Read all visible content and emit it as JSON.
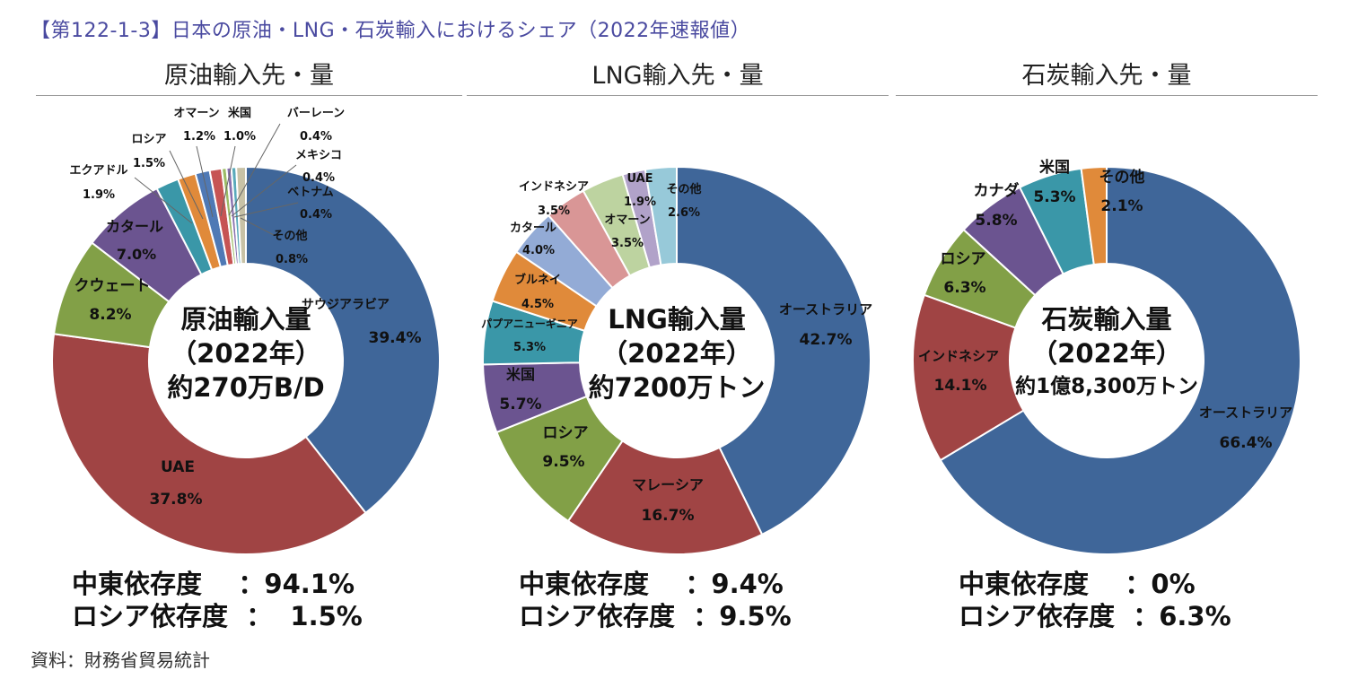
{
  "page_title": "【第122-1-3】日本の原油・LNG・石炭輸入におけるシェア（2022年速報値）",
  "source": "資料：財務省貿易統計",
  "chart_data": [
    {
      "type": "pie",
      "title": "原油輸入先・量",
      "center": [
        "原油輸入量",
        "（2022年）",
        "約270万B/D"
      ],
      "slices": [
        {
          "name": "サウジアラビア",
          "value": 39.4,
          "label": "39.4%",
          "color": "#3f6699"
        },
        {
          "name": "UAE",
          "value": 37.8,
          "label": "37.8%",
          "color": "#a04444"
        },
        {
          "name": "クウェート",
          "value": 8.2,
          "label": "8.2%",
          "color": "#82a047"
        },
        {
          "name": "カタール",
          "value": 7.0,
          "label": "7.0%",
          "color": "#6b5490"
        },
        {
          "name": "エクアドル",
          "value": 1.9,
          "label": "1.9%",
          "color": "#3a97a8"
        },
        {
          "name": "ロシア",
          "value": 1.5,
          "label": "1.5%",
          "color": "#e08a3a"
        },
        {
          "name": "オマーン",
          "value": 1.2,
          "label": "1.2%",
          "color": "#4f79b5"
        },
        {
          "name": "米国",
          "value": 1.0,
          "label": "1.0%",
          "color": "#c65454"
        },
        {
          "name": "バーレーン",
          "value": 0.4,
          "label": "0.4%",
          "color": "#9cbb66"
        },
        {
          "name": "メキシコ",
          "value": 0.4,
          "label": "0.4%",
          "color": "#8870ae"
        },
        {
          "name": "ベトナム",
          "value": 0.4,
          "label": "0.4%",
          "color": "#5aaabb"
        },
        {
          "name": "その他",
          "value": 0.8,
          "label": "0.8%",
          "color": "#c8c2a6"
        }
      ],
      "stats": {
        "mideast_label": "中東依存度",
        "mideast_value": "：94.1%",
        "russia_label": "ロシア依存度",
        "russia_value": "：  1.5%"
      }
    },
    {
      "type": "pie",
      "title": "LNG輸入先・量",
      "center": [
        "LNG輸入量",
        "（2022年）",
        "約7200万トン"
      ],
      "slices": [
        {
          "name": "オーストラリア",
          "value": 42.7,
          "label": "42.7%",
          "color": "#3f6699"
        },
        {
          "name": "マレーシア",
          "value": 16.7,
          "label": "16.7%",
          "color": "#a04444"
        },
        {
          "name": "ロシア",
          "value": 9.5,
          "label": "9.5%",
          "color": "#82a047"
        },
        {
          "name": "米国",
          "value": 5.7,
          "label": "5.7%",
          "color": "#6b5490"
        },
        {
          "name": "パプアニューギニア",
          "value": 5.3,
          "label": "5.3%",
          "color": "#3a97a8"
        },
        {
          "name": "ブルネイ",
          "value": 4.5,
          "label": "4.5%",
          "color": "#e08a3a"
        },
        {
          "name": "カタール",
          "value": 4.0,
          "label": "4.0%",
          "color": "#93abd6"
        },
        {
          "name": "インドネシア",
          "value": 3.5,
          "label": "3.5%",
          "color": "#d99696"
        },
        {
          "name": "オマーン",
          "value": 3.5,
          "label": "3.5%",
          "color": "#bdd3a0"
        },
        {
          "name": "UAE",
          "value": 1.9,
          "label": "1.9%",
          "color": "#b1a2c9"
        },
        {
          "name": "その他",
          "value": 2.6,
          "label": "2.6%",
          "color": "#97c9d9"
        }
      ],
      "stats": {
        "mideast_label": "中東依存度",
        "mideast_value": "：9.4%",
        "russia_label": "ロシア依存度",
        "russia_value": "：9.5%"
      }
    },
    {
      "type": "pie",
      "title": "石炭輸入先・量",
      "center": [
        "石炭輸入量",
        "（2022年）",
        "約1億8,300万トン"
      ],
      "slices": [
        {
          "name": "オーストラリア",
          "value": 66.4,
          "label": "66.4%",
          "color": "#3f6699"
        },
        {
          "name": "インドネシア",
          "value": 14.1,
          "label": "14.1%",
          "color": "#a04444"
        },
        {
          "name": "ロシア",
          "value": 6.3,
          "label": "6.3%",
          "color": "#82a047"
        },
        {
          "name": "カナダ",
          "value": 5.8,
          "label": "5.8%",
          "color": "#6b5490"
        },
        {
          "name": "米国",
          "value": 5.3,
          "label": "5.3%",
          "color": "#3a97a8"
        },
        {
          "name": "その他",
          "value": 2.1,
          "label": "2.1%",
          "color": "#e08a3a"
        }
      ],
      "stats": {
        "mideast_label": "中東依存度",
        "mideast_value": "：0%",
        "russia_label": "ロシア依存度",
        "russia_value": "：6.3%"
      }
    }
  ]
}
